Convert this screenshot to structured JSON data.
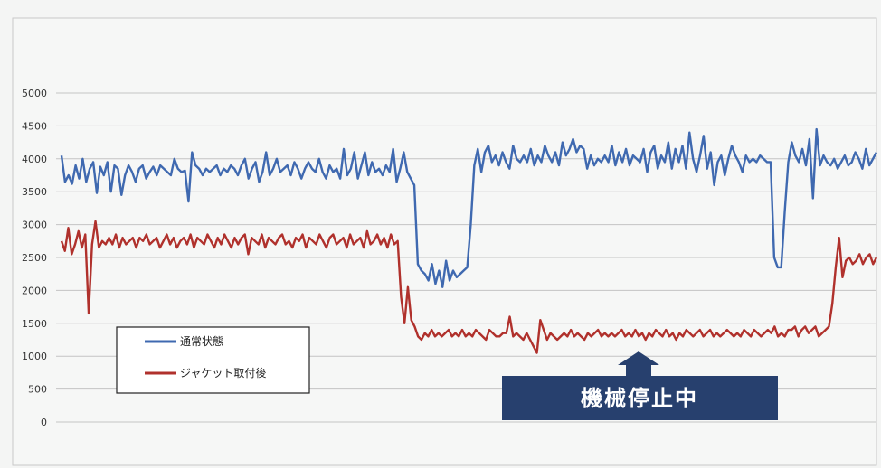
{
  "chart_data": {
    "type": "line",
    "title": "",
    "xlabel": "",
    "ylabel": "",
    "ylim": [
      0,
      5000
    ],
    "yticks": [
      "0",
      "500",
      "1000",
      "1500",
      "2000",
      "2500",
      "3000",
      "3500",
      "4000",
      "4500",
      "5000"
    ],
    "grid": true,
    "legend_position": "bottom-left",
    "series": [
      {
        "name": "通常状態",
        "color": "#3f69b0",
        "values": [
          4050,
          3650,
          3750,
          3620,
          3900,
          3700,
          4000,
          3650,
          3850,
          3950,
          3480,
          3880,
          3750,
          3950,
          3500,
          3900,
          3850,
          3450,
          3750,
          3900,
          3800,
          3650,
          3850,
          3900,
          3700,
          3800,
          3880,
          3750,
          3900,
          3850,
          3800,
          3750,
          4000,
          3850,
          3800,
          3820,
          3350,
          4100,
          3900,
          3850,
          3750,
          3850,
          3800,
          3850,
          3900,
          3750,
          3850,
          3800,
          3900,
          3850,
          3750,
          3900,
          4000,
          3700,
          3850,
          3950,
          3650,
          3800,
          4100,
          3750,
          3850,
          4000,
          3800,
          3850,
          3900,
          3750,
          3950,
          3850,
          3700,
          3850,
          3950,
          3850,
          3800,
          4000,
          3800,
          3700,
          3900,
          3800,
          3850,
          3700,
          4150,
          3750,
          3850,
          4100,
          3700,
          3900,
          4100,
          3750,
          3950,
          3800,
          3850,
          3750,
          3900,
          3800,
          4150,
          3650,
          3850,
          4100,
          3800,
          3700,
          3600,
          2400,
          2300,
          2250,
          2150,
          2400,
          2100,
          2300,
          2050,
          2450,
          2150,
          2300,
          2200,
          2250,
          2300,
          2350,
          3000,
          3900,
          4150,
          3800,
          4100,
          4200,
          3950,
          4050,
          3900,
          4100,
          3950,
          3850,
          4200,
          4000,
          3950,
          4050,
          3950,
          4150,
          3900,
          4050,
          3950,
          4200,
          4050,
          3950,
          4100,
          3900,
          4250,
          4050,
          4150,
          4300,
          4100,
          4200,
          4150,
          3850,
          4050,
          3900,
          4000,
          3950,
          4050,
          3950,
          4200,
          3900,
          4100,
          3950,
          4150,
          3900,
          4050,
          4000,
          3950,
          4150,
          3800,
          4100,
          4200,
          3850,
          4050,
          3950,
          4250,
          3850,
          4150,
          3950,
          4200,
          3850,
          4400,
          4000,
          3800,
          4050,
          4350,
          3850,
          4100,
          3600,
          3950,
          4050,
          3750,
          4000,
          4200,
          4050,
          3950,
          3800,
          4050,
          3950,
          4000,
          3950,
          4050,
          4000,
          3950,
          3950,
          2500,
          2350,
          2350,
          3200,
          3950,
          4250,
          4050,
          3950,
          4150,
          3900,
          4300,
          3400,
          4450,
          3900,
          4050,
          3950,
          3900,
          4000,
          3850,
          3950,
          4050,
          3900,
          3950,
          4100,
          4000,
          3850,
          4150,
          3900,
          4000,
          4100
        ]
      },
      {
        "name": "ジャケット取付後",
        "color": "#b0312c",
        "values": [
          2750,
          2600,
          2950,
          2550,
          2700,
          2900,
          2650,
          2850,
          1650,
          2700,
          3050,
          2650,
          2750,
          2700,
          2800,
          2700,
          2850,
          2650,
          2800,
          2700,
          2750,
          2800,
          2650,
          2800,
          2750,
          2850,
          2700,
          2750,
          2800,
          2650,
          2750,
          2850,
          2700,
          2800,
          2650,
          2750,
          2800,
          2700,
          2850,
          2650,
          2800,
          2750,
          2700,
          2850,
          2750,
          2650,
          2800,
          2700,
          2850,
          2750,
          2650,
          2800,
          2700,
          2800,
          2850,
          2550,
          2800,
          2750,
          2700,
          2850,
          2650,
          2800,
          2750,
          2700,
          2800,
          2850,
          2700,
          2750,
          2650,
          2800,
          2750,
          2850,
          2650,
          2800,
          2750,
          2700,
          2850,
          2750,
          2650,
          2800,
          2850,
          2700,
          2750,
          2800,
          2650,
          2850,
          2700,
          2750,
          2800,
          2650,
          2900,
          2700,
          2750,
          2850,
          2700,
          2800,
          2650,
          2850,
          2700,
          2750,
          1900,
          1500,
          2050,
          1550,
          1450,
          1300,
          1250,
          1350,
          1300,
          1400,
          1300,
          1350,
          1300,
          1350,
          1400,
          1300,
          1350,
          1300,
          1400,
          1300,
          1350,
          1300,
          1400,
          1350,
          1300,
          1250,
          1400,
          1350,
          1300,
          1300,
          1350,
          1350,
          1600,
          1300,
          1350,
          1300,
          1250,
          1350,
          1250,
          1150,
          1050,
          1550,
          1400,
          1250,
          1350,
          1300,
          1250,
          1300,
          1350,
          1300,
          1400,
          1300,
          1350,
          1300,
          1250,
          1350,
          1300,
          1350,
          1400,
          1300,
          1350,
          1300,
          1350,
          1300,
          1350,
          1400,
          1300,
          1350,
          1300,
          1400,
          1300,
          1350,
          1250,
          1350,
          1300,
          1400,
          1350,
          1300,
          1400,
          1300,
          1350,
          1250,
          1350,
          1300,
          1400,
          1350,
          1300,
          1350,
          1400,
          1300,
          1350,
          1400,
          1300,
          1350,
          1300,
          1350,
          1400,
          1350,
          1300,
          1350,
          1300,
          1400,
          1350,
          1300,
          1400,
          1350,
          1300,
          1350,
          1400,
          1350,
          1450,
          1300,
          1350,
          1300,
          1400,
          1400,
          1450,
          1300,
          1400,
          1450,
          1350,
          1400,
          1450,
          1300,
          1350,
          1400,
          1450,
          1800,
          2350,
          2800,
          2200,
          2450,
          2500,
          2400,
          2450,
          2550,
          2400,
          2500,
          2550,
          2400,
          2500
        ]
      }
    ],
    "annotations": [
      {
        "text": "機械停止中",
        "box_color": "#27406e",
        "text_color": "#ffffff"
      }
    ]
  }
}
